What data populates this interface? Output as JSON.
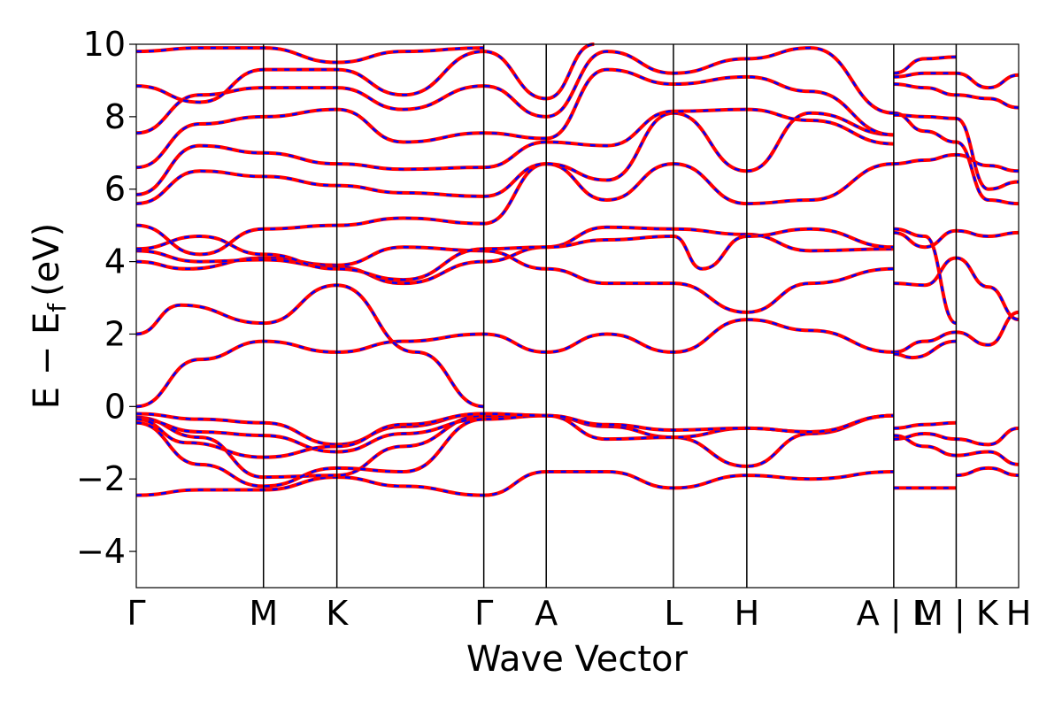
{
  "chart_data": {
    "type": "line",
    "title": "",
    "xlabel": "Wave Vector",
    "ylabel": "E − E",
    "ylabel_sub": "f",
    "ylabel_unit": "(eV)",
    "ylim": [
      -5,
      10
    ],
    "yticks": [
      -4,
      -2,
      0,
      2,
      4,
      6,
      8,
      10
    ],
    "ytick_labels": [
      "−4",
      "−2",
      "0",
      "2",
      "4",
      "6",
      "8",
      "10"
    ],
    "xticks": [
      {
        "x": 0.0,
        "label": "Γ"
      },
      {
        "x": 1.0,
        "label": "M"
      },
      {
        "x": 1.577,
        "label": "K"
      },
      {
        "x": 2.732,
        "label": "Γ"
      },
      {
        "x": 3.223,
        "label": "A"
      },
      {
        "x": 4.223,
        "label": "L"
      },
      {
        "x": 4.8,
        "label": "H"
      },
      {
        "x": 5.955,
        "label": "A | L"
      },
      {
        "x": 6.446,
        "label": "M | K"
      },
      {
        "x": 6.937,
        "label": "H"
      }
    ],
    "xlim": [
      0,
      6.937
    ],
    "series_colors": {
      "line": "#ff0000",
      "dash": "#0000ff"
    },
    "bands": [
      {
        "pts": [
          [
            0,
            -2.45
          ],
          [
            0.5,
            -2.3
          ],
          [
            1.0,
            -2.3
          ],
          [
            1.577,
            -1.95
          ],
          [
            2.1,
            -2.2
          ],
          [
            2.732,
            -2.45
          ],
          [
            3.223,
            -1.8
          ],
          [
            3.7,
            -1.8
          ],
          [
            4.223,
            -2.25
          ],
          [
            4.8,
            -1.9
          ],
          [
            5.3,
            -2.0
          ],
          [
            5.955,
            -1.8
          ]
        ]
      },
      {
        "pts": [
          [
            0,
            -0.3
          ],
          [
            0.5,
            -0.85
          ],
          [
            1.0,
            -1.95
          ],
          [
            1.577,
            -1.9
          ],
          [
            2.1,
            -1.1
          ],
          [
            2.732,
            -0.25
          ],
          [
            3.223,
            -0.25
          ],
          [
            3.7,
            -0.55
          ],
          [
            4.223,
            -0.85
          ],
          [
            4.8,
            -1.65
          ],
          [
            5.3,
            -0.75
          ],
          [
            5.955,
            -0.25
          ]
        ]
      },
      {
        "pts": [
          [
            0,
            -0.35
          ],
          [
            0.5,
            -0.7
          ],
          [
            1.0,
            -0.8
          ],
          [
            1.577,
            -1.25
          ],
          [
            2.1,
            -0.75
          ],
          [
            2.732,
            -0.35
          ],
          [
            3.223,
            -0.25
          ],
          [
            3.7,
            -0.9
          ],
          [
            4.223,
            -0.85
          ],
          [
            4.8,
            -0.6
          ],
          [
            5.3,
            -0.7
          ],
          [
            5.955,
            -0.25
          ]
        ]
      },
      {
        "pts": [
          [
            0,
            -0.2
          ],
          [
            0.5,
            -0.35
          ],
          [
            1.0,
            -0.45
          ],
          [
            1.577,
            -1.05
          ],
          [
            2.1,
            -0.55
          ],
          [
            2.732,
            -0.2
          ],
          [
            3.223,
            -0.25
          ],
          [
            3.7,
            -0.5
          ],
          [
            4.223,
            -0.65
          ],
          [
            4.8,
            -0.6
          ],
          [
            5.3,
            -0.7
          ],
          [
            5.955,
            -0.25
          ]
        ]
      },
      {
        "pts": [
          [
            0,
            -0.35
          ],
          [
            0.4,
            -1.0
          ],
          [
            1.0,
            -1.4
          ],
          [
            1.577,
            -1.1
          ],
          [
            2.1,
            -0.5
          ],
          [
            2.732,
            -0.2
          ],
          [
            3.223,
            -0.25
          ]
        ]
      },
      {
        "pts": [
          [
            0,
            -0.45
          ],
          [
            0.5,
            -1.6
          ],
          [
            1.0,
            -2.2
          ],
          [
            1.577,
            -1.7
          ],
          [
            2.1,
            -1.8
          ],
          [
            2.732,
            -0.35
          ]
        ]
      },
      {
        "pts": [
          [
            0,
            0.0
          ],
          [
            0.5,
            1.3
          ],
          [
            1.0,
            1.8
          ],
          [
            1.577,
            1.5
          ],
          [
            2.1,
            1.8
          ],
          [
            2.732,
            2.0
          ],
          [
            3.223,
            1.5
          ],
          [
            3.7,
            2.0
          ],
          [
            4.223,
            1.5
          ],
          [
            4.8,
            2.4
          ],
          [
            5.3,
            2.1
          ],
          [
            5.955,
            1.5
          ]
        ]
      },
      {
        "pts": [
          [
            0,
            2.0
          ],
          [
            0.35,
            2.8
          ],
          [
            1.0,
            2.3
          ],
          [
            1.577,
            3.35
          ],
          [
            2.2,
            1.5
          ],
          [
            2.732,
            0.0
          ]
        ]
      },
      {
        "pts": [
          [
            0,
            4.0
          ],
          [
            0.4,
            3.8
          ],
          [
            1.0,
            4.1
          ],
          [
            1.577,
            3.9
          ],
          [
            2.1,
            4.4
          ],
          [
            2.732,
            4.3
          ],
          [
            3.223,
            3.8
          ],
          [
            3.7,
            3.4
          ],
          [
            4.223,
            3.4
          ],
          [
            4.8,
            2.6
          ],
          [
            5.3,
            3.4
          ],
          [
            5.955,
            3.8
          ]
        ]
      },
      {
        "pts": [
          [
            0,
            4.3
          ],
          [
            0.5,
            4.0
          ],
          [
            1.0,
            4.05
          ],
          [
            1.577,
            3.85
          ],
          [
            2.1,
            3.4
          ],
          [
            2.732,
            4.0
          ],
          [
            3.223,
            4.4
          ],
          [
            3.7,
            4.95
          ],
          [
            4.223,
            4.9
          ],
          [
            4.8,
            4.75
          ],
          [
            5.3,
            4.3
          ],
          [
            5.955,
            4.35
          ]
        ]
      },
      {
        "pts": [
          [
            0,
            4.35
          ],
          [
            0.5,
            4.7
          ],
          [
            1.0,
            4.2
          ],
          [
            1.577,
            3.8
          ],
          [
            2.1,
            3.5
          ],
          [
            2.732,
            4.35
          ],
          [
            3.223,
            4.4
          ],
          [
            3.7,
            4.6
          ],
          [
            4.223,
            4.7
          ],
          [
            4.45,
            3.8
          ],
          [
            4.8,
            4.7
          ],
          [
            5.3,
            4.9
          ],
          [
            5.955,
            4.4
          ]
        ]
      },
      {
        "pts": [
          [
            0,
            5.0
          ],
          [
            0.5,
            4.2
          ],
          [
            1.0,
            4.9
          ],
          [
            1.577,
            5.0
          ],
          [
            2.1,
            5.2
          ],
          [
            2.732,
            5.05
          ],
          [
            3.223,
            6.7
          ],
          [
            3.7,
            5.7
          ],
          [
            4.223,
            6.7
          ],
          [
            4.8,
            5.6
          ],
          [
            5.3,
            5.7
          ],
          [
            5.955,
            6.7
          ]
        ]
      },
      {
        "pts": [
          [
            0,
            5.6
          ],
          [
            0.5,
            6.5
          ],
          [
            1.0,
            6.35
          ],
          [
            1.577,
            6.1
          ],
          [
            2.1,
            5.9
          ],
          [
            2.732,
            5.8
          ],
          [
            3.223,
            6.7
          ],
          [
            3.7,
            6.25
          ],
          [
            4.223,
            8.1
          ],
          [
            4.8,
            6.5
          ],
          [
            5.3,
            8.1
          ],
          [
            5.955,
            7.5
          ]
        ]
      },
      {
        "pts": [
          [
            0,
            5.85
          ],
          [
            0.5,
            7.2
          ],
          [
            1.0,
            7.0
          ],
          [
            1.577,
            6.7
          ],
          [
            2.1,
            6.55
          ],
          [
            2.732,
            6.6
          ],
          [
            3.223,
            7.3
          ],
          [
            3.7,
            7.2
          ],
          [
            4.223,
            8.15
          ],
          [
            4.8,
            8.2
          ],
          [
            5.3,
            7.9
          ],
          [
            5.955,
            7.25
          ]
        ]
      },
      {
        "pts": [
          [
            0,
            6.6
          ],
          [
            0.5,
            7.8
          ],
          [
            1.0,
            8.0
          ],
          [
            1.577,
            8.2
          ],
          [
            2.1,
            7.3
          ],
          [
            2.732,
            7.55
          ],
          [
            3.223,
            7.4
          ],
          [
            3.7,
            9.3
          ],
          [
            4.223,
            8.9
          ],
          [
            4.8,
            9.1
          ],
          [
            5.3,
            8.7
          ],
          [
            5.955,
            7.5
          ]
        ]
      },
      {
        "pts": [
          [
            0,
            7.55
          ],
          [
            0.5,
            8.6
          ],
          [
            1.0,
            8.8
          ],
          [
            1.577,
            8.8
          ],
          [
            2.1,
            8.2
          ],
          [
            2.732,
            8.85
          ],
          [
            3.223,
            8.0
          ],
          [
            3.7,
            9.8
          ],
          [
            4.223,
            9.2
          ],
          [
            4.8,
            9.6
          ],
          [
            5.3,
            9.9
          ],
          [
            5.955,
            8.1
          ]
        ]
      },
      {
        "pts": [
          [
            0,
            8.85
          ],
          [
            0.5,
            8.4
          ],
          [
            1.0,
            9.3
          ],
          [
            1.577,
            9.3
          ],
          [
            2.1,
            8.6
          ],
          [
            2.732,
            9.8
          ],
          [
            3.223,
            8.5
          ],
          [
            3.6,
            10.0
          ]
        ]
      },
      {
        "pts": [
          [
            0,
            9.8
          ],
          [
            0.5,
            9.9
          ],
          [
            1.0,
            9.9
          ],
          [
            1.577,
            9.5
          ],
          [
            2.1,
            9.8
          ],
          [
            2.732,
            9.9
          ]
        ]
      },
      {
        "pts": [
          [
            5.955,
            -2.25
          ],
          [
            6.2,
            -2.25
          ],
          [
            6.446,
            -2.25
          ]
        ]
      },
      {
        "pts": [
          [
            5.955,
            -0.8
          ],
          [
            6.2,
            -1.1
          ],
          [
            6.446,
            -1.35
          ],
          [
            6.7,
            -1.25
          ],
          [
            6.937,
            -1.6
          ]
        ]
      },
      {
        "pts": [
          [
            5.955,
            -0.6
          ],
          [
            6.2,
            -0.5
          ],
          [
            6.446,
            -0.45
          ]
        ]
      },
      {
        "pts": [
          [
            5.955,
            -0.9
          ],
          [
            6.2,
            -0.75
          ],
          [
            6.446,
            -0.9
          ],
          [
            6.7,
            -1.05
          ],
          [
            6.937,
            -0.6
          ]
        ]
      },
      {
        "pts": [
          [
            6.446,
            -1.9
          ],
          [
            6.7,
            -1.7
          ],
          [
            6.937,
            -1.9
          ]
        ]
      },
      {
        "pts": [
          [
            5.955,
            1.5
          ],
          [
            6.2,
            1.8
          ],
          [
            6.446,
            2.05
          ],
          [
            6.7,
            1.7
          ],
          [
            6.937,
            2.6
          ]
        ]
      },
      {
        "pts": [
          [
            5.955,
            1.45
          ],
          [
            6.1,
            1.35
          ],
          [
            6.446,
            1.8
          ]
        ]
      },
      {
        "pts": [
          [
            5.955,
            3.4
          ],
          [
            6.2,
            3.35
          ],
          [
            6.446,
            4.1
          ],
          [
            6.7,
            3.3
          ],
          [
            6.937,
            2.4
          ]
        ]
      },
      {
        "pts": [
          [
            5.955,
            4.8
          ],
          [
            6.2,
            4.4
          ],
          [
            6.446,
            4.85
          ],
          [
            6.7,
            4.7
          ],
          [
            6.937,
            4.8
          ]
        ]
      },
      {
        "pts": [
          [
            5.955,
            4.9
          ],
          [
            6.2,
            4.7
          ],
          [
            6.446,
            2.3
          ]
        ]
      },
      {
        "pts": [
          [
            5.955,
            6.7
          ],
          [
            6.2,
            6.8
          ],
          [
            6.446,
            6.95
          ],
          [
            6.7,
            6.65
          ],
          [
            6.937,
            6.5
          ]
        ]
      },
      {
        "pts": [
          [
            5.955,
            8.1
          ],
          [
            6.2,
            7.6
          ],
          [
            6.446,
            7.3
          ],
          [
            6.7,
            5.7
          ],
          [
            6.937,
            5.6
          ]
        ]
      },
      {
        "pts": [
          [
            5.955,
            8.05
          ],
          [
            6.2,
            8.0
          ],
          [
            6.446,
            7.95
          ],
          [
            6.7,
            6.0
          ],
          [
            6.937,
            6.2
          ]
        ]
      },
      {
        "pts": [
          [
            5.955,
            8.9
          ],
          [
            6.2,
            8.8
          ],
          [
            6.446,
            8.6
          ],
          [
            6.7,
            8.5
          ],
          [
            6.937,
            8.25
          ]
        ]
      },
      {
        "pts": [
          [
            5.955,
            9.1
          ],
          [
            6.2,
            9.2
          ],
          [
            6.446,
            9.2
          ],
          [
            6.7,
            8.8
          ],
          [
            6.937,
            9.15
          ]
        ]
      },
      {
        "pts": [
          [
            5.955,
            9.2
          ],
          [
            6.2,
            9.6
          ],
          [
            6.446,
            9.65
          ]
        ]
      }
    ]
  }
}
